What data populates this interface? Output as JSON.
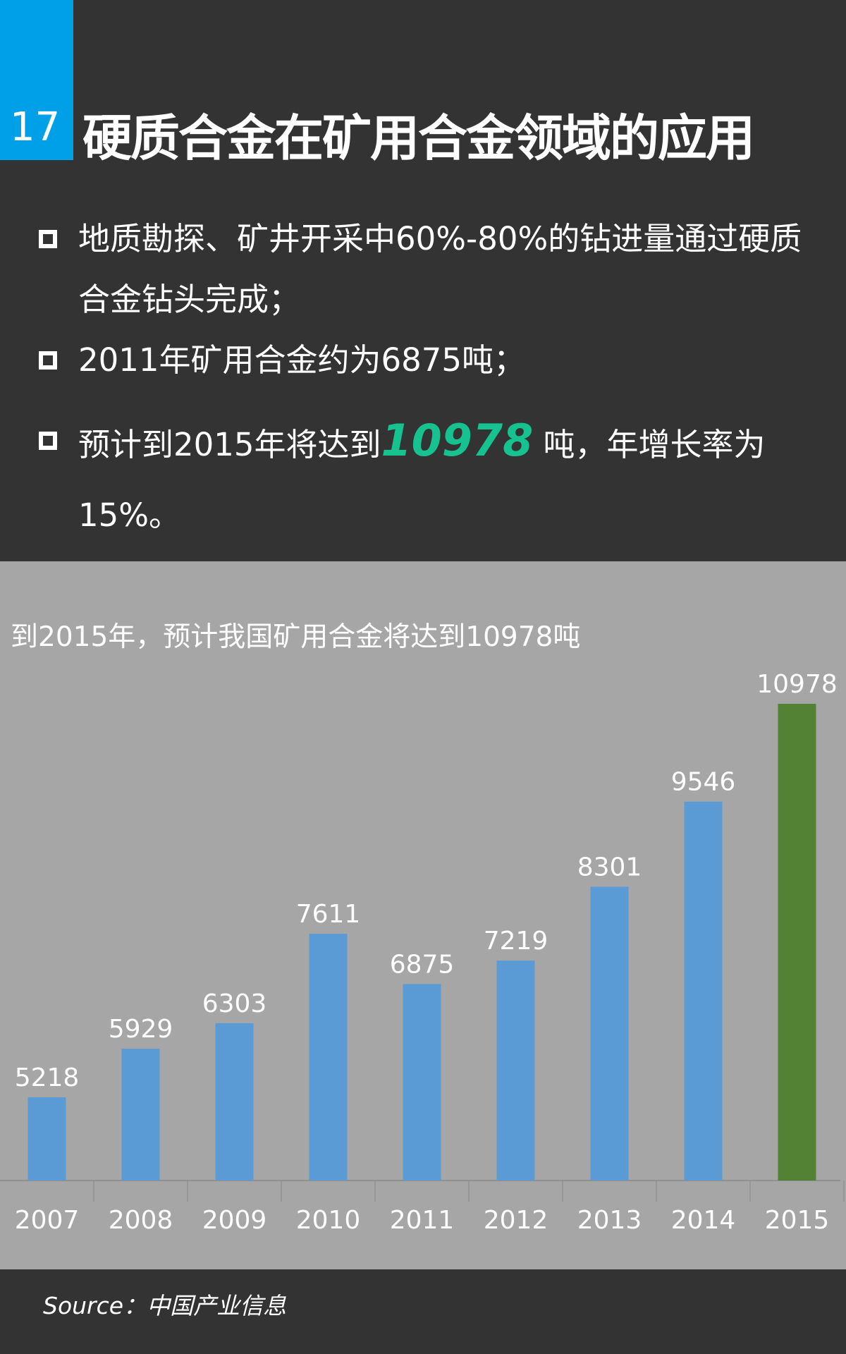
{
  "header": {
    "number": "17",
    "title": "硬质合金在矿用合金领域的应用"
  },
  "bullets": [
    {
      "text": "地质勘探、矿井开采中60%-80%的钻进量通过硬质合金钻头完成；"
    },
    {
      "text": "2011年矿用合金约为6875吨；"
    },
    {
      "pre": "预计到2015年将达到",
      "highlight": "10978",
      "post": " 吨，年增长率为15%。"
    }
  ],
  "source": "Source：中国产业信息",
  "colors": {
    "accent": "#00a0e9",
    "bar": "#5b9bd5",
    "bar_highlight": "#548235",
    "text_highlight": "#16c28f"
  },
  "chart_data": {
    "type": "bar",
    "title": "到2015年，预计我国矿用合金将达到10978吨",
    "categories": [
      "2007",
      "2008",
      "2009",
      "2010",
      "2011",
      "2012",
      "2013",
      "2014",
      "2015"
    ],
    "values": [
      5218,
      5929,
      6303,
      7611,
      6875,
      7219,
      8301,
      9546,
      10978
    ],
    "highlight_index": 8,
    "xlabel": "",
    "ylabel": "",
    "ylim": [
      4000,
      12000
    ],
    "grid": false,
    "data_labels": true
  }
}
